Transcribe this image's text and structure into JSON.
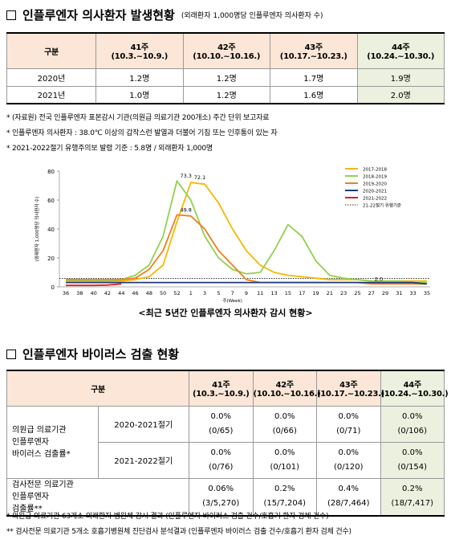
{
  "section1": {
    "title": "인플루엔자 의사환자 발생현황",
    "subtitle": "(외래환자 1,000명당 인플루엔자 의사환자 수)"
  },
  "table1": {
    "corner": "구분",
    "columns": [
      {
        "week": "41주",
        "range": "(10.3.~10.9.)"
      },
      {
        "week": "42주",
        "range": "(10.10.~10.16.)"
      },
      {
        "week": "43주",
        "range": "(10.17.~10.23.)"
      },
      {
        "week": "44주",
        "range": "(10.24.~10.30.)"
      }
    ],
    "rows": [
      {
        "label": "2020년",
        "cells": [
          "1.2명",
          "1.2명",
          "1.7명",
          "1.9명"
        ]
      },
      {
        "label": "2021년",
        "cells": [
          "1.0명",
          "1.2명",
          "1.6명",
          "2.0명"
        ]
      }
    ]
  },
  "notes1": [
    "* (자료원) 전국 인플루엔자 표본감시 기관(의원급 의료기관 200개소) 주간 단위 보고자료",
    "* 인플루엔자 의사환자 : 38.0℃ 이상의 갑작스런 발열과 더불어 기침 또는 인후통이 있는 자",
    "* 2021-2022절기 유행주의보 발령 기준 : 5.8명 / 외래환자 1,000명"
  ],
  "chart": {
    "type": "line",
    "xlabel": "주(Week)",
    "ylabel": "(외래환자 1,000명당 의사환자 수)",
    "categories": [
      "36",
      "38",
      "40",
      "42",
      "44",
      "46",
      "48",
      "50",
      "52",
      "1",
      "3",
      "5",
      "7",
      "9",
      "11",
      "13",
      "15",
      "17",
      "19",
      "21",
      "23",
      "25",
      "27",
      "29",
      "31",
      "33",
      "35"
    ],
    "ylim": [
      0,
      80
    ],
    "yticks": [
      0,
      20,
      40,
      60,
      80
    ],
    "series": [
      {
        "name": "2017-2018",
        "color": "#f5b800",
        "values": [
          5,
          5,
          4,
          4,
          4,
          5,
          7,
          15,
          45,
          72.1,
          71,
          58,
          40,
          25,
          15,
          10,
          8,
          7,
          6,
          5,
          5,
          5,
          4,
          4,
          4,
          4,
          4
        ]
      },
      {
        "name": "2018-2019",
        "color": "#92d050",
        "values": [
          4,
          4,
          4,
          4,
          5,
          8,
          15,
          35,
          73.3,
          60,
          35,
          20,
          12,
          9,
          10,
          25,
          43,
          35,
          18,
          8,
          6,
          5,
          4,
          4,
          4,
          3,
          3
        ]
      },
      {
        "name": "2019-2020",
        "color": "#f07e1e",
        "values": [
          5,
          5,
          5,
          5,
          5,
          6,
          12,
          25,
          49.8,
          49,
          40,
          25,
          15,
          5,
          3,
          3,
          3,
          3,
          3,
          3,
          3,
          3,
          2,
          2,
          2,
          2,
          2
        ]
      },
      {
        "name": "2020-2021",
        "color": "#1f3a7a",
        "values": [
          3,
          3,
          3,
          3,
          3,
          3,
          3,
          3,
          3,
          3,
          3,
          3,
          3,
          3,
          3,
          3,
          3,
          3,
          3,
          3,
          3,
          3,
          3,
          3,
          3,
          3,
          2
        ]
      },
      {
        "name": "2021-2022",
        "color": "#e0201b",
        "values": [
          1,
          1,
          1,
          1.2,
          2.0,
          null,
          null,
          null,
          null,
          null,
          null,
          null,
          null,
          null,
          null,
          null,
          null,
          null,
          null,
          null,
          null,
          null,
          null,
          null,
          null,
          null,
          null
        ]
      }
    ],
    "threshold": {
      "name": "21-22절기 유행기준",
      "value": 5.8,
      "color": "#333333"
    },
    "annotations": [
      "73.3",
      "72.1",
      "49.8",
      "2.0"
    ]
  },
  "caption": "<최근 5년간 인플루엔자 의사환자 감시 현황>",
  "section2": {
    "title": "인플루엔자 바이러스 검출 현황"
  },
  "table2": {
    "corner": "구분",
    "columns": [
      {
        "week": "41주",
        "range": "(10.3.~10.9.)"
      },
      {
        "week": "42주",
        "range": "(10.10.~10.16.)"
      },
      {
        "week": "43주",
        "range": "(10.17.~10.23.)"
      },
      {
        "week": "44주",
        "range": "(10.24.~10.30.)"
      }
    ],
    "groups": [
      {
        "label": "의원급 의료기관\n인플루엔자\n바이러스 검출률*",
        "rows": [
          {
            "label": "2020-2021절기",
            "cells": [
              {
                "rate": "0.0%",
                "count": "(0/65)"
              },
              {
                "rate": "0.0%",
                "count": "(0/66)"
              },
              {
                "rate": "0.0%",
                "count": "(0/71)"
              },
              {
                "rate": "0.0%",
                "count": "(0/106)"
              }
            ]
          },
          {
            "label": "2021-2022절기",
            "cells": [
              {
                "rate": "0.0%",
                "count": "(0/76)"
              },
              {
                "rate": "0.0%",
                "count": "(0/101)"
              },
              {
                "rate": "0.0%",
                "count": "(0/120)"
              },
              {
                "rate": "0.0%",
                "count": "(0/154)"
              }
            ]
          }
        ]
      },
      {
        "label": "검사전문 의료기관\n인플루엔자\n검출률**",
        "cells": [
          {
            "rate": "0.06%",
            "count": "(3/5,270)"
          },
          {
            "rate": "0.2%",
            "count": "(15/7,204)"
          },
          {
            "rate": "0.4%",
            "count": "(28/7,464)"
          },
          {
            "rate": "0.2%",
            "count": "(18/7,417)"
          }
        ]
      }
    ]
  },
  "notes2": [
    "* 의원급 의료기관 63개소 외래환자 병원체 감시 결과 (인플루엔자 바이러스 검출 건수/호흡기 환자 검체 건수)",
    "** 검사전문 의료기관 5개소 호흡기병원체 진단검사 분석결과 (인플루엔자 바이러스 검출 건수/호흡기 환자 검체 건수)"
  ]
}
